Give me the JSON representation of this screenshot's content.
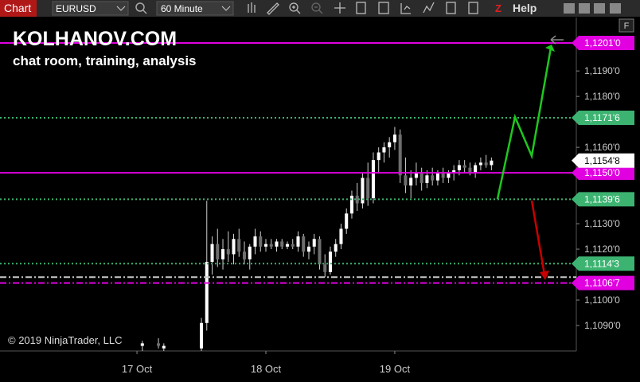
{
  "toolbar": {
    "title": "Chart",
    "instrument": "EURUSD",
    "period": "60 Minute",
    "z": "Z",
    "help": "Help"
  },
  "watermark": {
    "brand": "KOLHANOV.COM",
    "tagline": "chat room, training, analysis",
    "copyright": "© 2019 NinjaTrader, LLC",
    "flag": "F"
  },
  "chart_data": {
    "type": "candlestick",
    "up_color": "#ffffff",
    "down_color": "#6e6e6e",
    "wick_color": "#d0d0d0",
    "x": [
      1,
      4,
      5,
      12,
      13,
      14,
      15,
      16,
      17,
      18,
      19,
      20,
      21,
      22,
      23,
      24,
      25,
      26,
      27,
      28,
      29,
      30,
      31,
      32,
      33,
      34,
      35,
      36,
      37,
      38,
      39,
      40,
      41,
      42,
      43,
      44,
      45,
      46,
      47,
      48,
      49,
      50,
      51,
      52,
      53,
      54,
      55,
      56,
      57,
      58,
      59,
      60,
      61,
      62,
      63,
      64,
      65,
      66
    ],
    "open": [
      1.1082,
      1.1083,
      1.1081,
      1.1081,
      1.1091,
      1.1115,
      1.1122,
      1.1116,
      1.112,
      1.1118,
      1.1124,
      1.1119,
      1.1116,
      1.1121,
      1.1125,
      1.1121,
      1.1122,
      1.1121,
      1.1123,
      1.1121,
      1.1122,
      1.1121,
      1.1125,
      1.1119,
      1.1121,
      1.1124,
      1.1114,
      1.1111,
      1.1119,
      1.1122,
      1.1128,
      1.1134,
      1.1141,
      1.1138,
      1.1148,
      1.114,
      1.1155,
      1.1158,
      1.116,
      1.1162,
      1.1165,
      1.1149,
      1.1145,
      1.1148,
      1.115,
      1.1146,
      1.1149,
      1.1147,
      1.115,
      1.1148,
      1.115,
      1.1151,
      1.1153,
      1.1152,
      1.115,
      1.1153,
      1.1154,
      1.1153
    ],
    "high": [
      1.1084,
      1.1085,
      1.1083,
      1.1093,
      1.1139,
      1.1125,
      1.1128,
      1.1124,
      1.1127,
      1.1126,
      1.1128,
      1.1123,
      1.1122,
      1.1128,
      1.1127,
      1.1124,
      1.1124,
      1.1124,
      1.1124,
      1.1123,
      1.1124,
      1.1127,
      1.1126,
      1.1123,
      1.1126,
      1.1125,
      1.1118,
      1.1121,
      1.1124,
      1.113,
      1.1136,
      1.1143,
      1.1146,
      1.115,
      1.1154,
      1.1158,
      1.116,
      1.1162,
      1.1164,
      1.1168,
      1.1167,
      1.1156,
      1.1151,
      1.1154,
      1.1152,
      1.1151,
      1.1152,
      1.1151,
      1.1152,
      1.1151,
      1.1153,
      1.1155,
      1.1155,
      1.1154,
      1.1154,
      1.1156,
      1.1157,
      1.1156
    ],
    "low": [
      1.108,
      1.1081,
      1.108,
      1.108,
      1.1088,
      1.111,
      1.1113,
      1.1112,
      1.1115,
      1.1114,
      1.1117,
      1.1114,
      1.1112,
      1.1118,
      1.1119,
      1.1119,
      1.112,
      1.1119,
      1.112,
      1.112,
      1.112,
      1.1119,
      1.1117,
      1.1116,
      1.1118,
      1.1112,
      1.1109,
      1.111,
      1.1117,
      1.112,
      1.1126,
      1.1132,
      1.1135,
      1.1136,
      1.1137,
      1.1138,
      1.115,
      1.1154,
      1.1156,
      1.1159,
      1.1146,
      1.1142,
      1.114,
      1.1145,
      1.1143,
      1.1144,
      1.1145,
      1.1145,
      1.1146,
      1.1146,
      1.1147,
      1.1149,
      1.115,
      1.1149,
      1.1148,
      1.1151,
      1.1152,
      1.1151
    ],
    "close": [
      1.1083,
      1.1082,
      1.1082,
      1.1091,
      1.1115,
      1.1122,
      1.1116,
      1.112,
      1.1118,
      1.1124,
      1.1119,
      1.1116,
      1.1121,
      1.1125,
      1.1121,
      1.1122,
      1.1121,
      1.1123,
      1.1121,
      1.1122,
      1.1121,
      1.1125,
      1.1119,
      1.1121,
      1.1124,
      1.1114,
      1.1111,
      1.1119,
      1.1122,
      1.1128,
      1.1134,
      1.1141,
      1.1138,
      1.1148,
      1.114,
      1.1155,
      1.1158,
      1.116,
      1.1162,
      1.1165,
      1.1149,
      1.1145,
      1.1148,
      1.115,
      1.1146,
      1.1149,
      1.1147,
      1.115,
      1.1148,
      1.115,
      1.1151,
      1.1153,
      1.1152,
      1.115,
      1.1153,
      1.1154,
      1.1153,
      1.11548
    ],
    "xlim": [
      -25.5,
      81.8
    ],
    "xticks": [
      {
        "value": 0,
        "label": "17 Oct"
      },
      {
        "value": 24,
        "label": "18 Oct"
      },
      {
        "value": 48,
        "label": "19 Oct"
      }
    ],
    "ylim": [
      1.108,
      1.1211
    ],
    "yticks": [
      {
        "value": 1.109,
        "label": "1,1090'0"
      },
      {
        "value": 1.11,
        "label": "1,1100'0"
      },
      {
        "value": 1.112,
        "label": "1,1120'0"
      },
      {
        "value": 1.113,
        "label": "1,1130'0"
      },
      {
        "value": 1.116,
        "label": "1,1160'0"
      },
      {
        "value": 1.118,
        "label": "1,1180'0"
      },
      {
        "value": 1.119,
        "label": "1,1190'0"
      }
    ],
    "levels": [
      {
        "value": 1.1201,
        "label": "1,1201'0",
        "color": "#e000e0",
        "style": "solid"
      },
      {
        "value": 1.11716,
        "label": "1,1171'6",
        "color": "#3cb371",
        "style": "dotted"
      },
      {
        "value": 1.115,
        "label": "1,1150'0",
        "color": "#e000e0",
        "style": "solid"
      },
      {
        "value": 1.11396,
        "label": "1,1139'6",
        "color": "#3cb371",
        "style": "dotted"
      },
      {
        "value": 1.11143,
        "label": "1,1114'3",
        "color": "#3cb371",
        "style": "dotted"
      },
      {
        "value": 1.1109,
        "color": "#c8c8c8",
        "style": "dashdot"
      },
      {
        "value": 1.11067,
        "label": "1,1106'7",
        "color": "#e000e0",
        "style": "dashdot"
      }
    ],
    "last_price": {
      "value": 1.11548,
      "label": "1,1154'8",
      "color": "#ffffff"
    }
  }
}
